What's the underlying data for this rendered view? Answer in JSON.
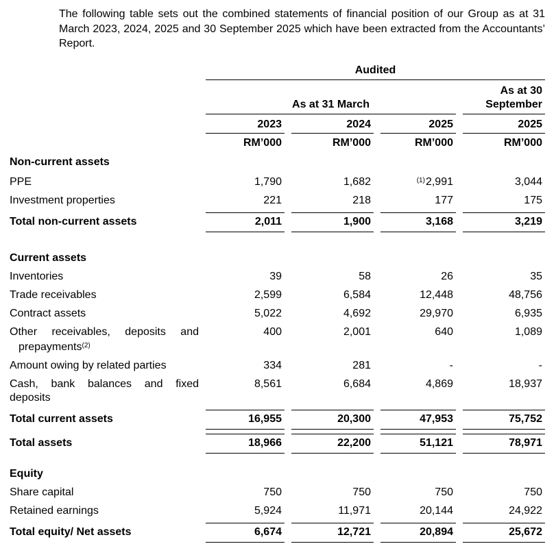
{
  "colors": {
    "text": "#000000",
    "background": "#ffffff",
    "rule": "#000000"
  },
  "intro": "The following table sets out the combined statements of financial position of our Group as at 31 March 2023, 2024, 2025 and 30 September 2025 which have been extracted from the Accountants’ Report.",
  "header": {
    "audited": "Audited",
    "march_group": "As at 31 March",
    "sep_group": "As at 30 September",
    "year_2023": "2023",
    "year_2024": "2024",
    "year_2025": "2025",
    "year_sep_2025": "2025",
    "unit": "RM’000"
  },
  "sections": {
    "non_current": {
      "title": "Non-current assets",
      "ppe": {
        "label": "PPE",
        "v1": "1,790",
        "v2": "1,682",
        "v3_note": "(1)",
        "v3": "2,991",
        "v4": "3,044"
      },
      "investment_properties": {
        "label": "Investment properties",
        "v1": "221",
        "v2": "218",
        "v3": "177",
        "v4": "175"
      },
      "total": {
        "label": "Total non-current assets",
        "v1": "2,011",
        "v2": "1,900",
        "v3": "3,168",
        "v4": "3,219"
      }
    },
    "current": {
      "title": "Current assets",
      "inventories": {
        "label": "Inventories",
        "v1": "39",
        "v2": "58",
        "v3": "26",
        "v4": "35"
      },
      "trade_receivables": {
        "label": "Trade receivables",
        "v1": "2,599",
        "v2": "6,584",
        "v3": "12,448",
        "v4": "48,756"
      },
      "contract_assets": {
        "label": "Contract assets",
        "v1": "5,022",
        "v2": "4,692",
        "v3": "29,970",
        "v4": "6,935"
      },
      "other_receivables": {
        "label_line1": "Other receivables, deposits and",
        "label_line2": "prepayments",
        "label_note": "(2)",
        "v1": "400",
        "v2": "2,001",
        "v3": "640",
        "v4": "1,089"
      },
      "related_parties": {
        "label": "Amount owing by related parties",
        "v1": "334",
        "v2": "281",
        "v3": "-",
        "v4": "-"
      },
      "cash": {
        "label_line1": "Cash, bank balances and fixed",
        "label_line2": "deposits",
        "v1": "8,561",
        "v2": "6,684",
        "v3": "4,869",
        "v4": "18,937"
      },
      "total": {
        "label": "Total current assets",
        "v1": "16,955",
        "v2": "20,300",
        "v3": "47,953",
        "v4": "75,752"
      }
    },
    "total_assets": {
      "label": "Total assets",
      "v1": "18,966",
      "v2": "22,200",
      "v3": "51,121",
      "v4": "78,971"
    },
    "equity": {
      "title": "Equity",
      "share_capital": {
        "label": "Share capital",
        "v1": "750",
        "v2": "750",
        "v3": "750",
        "v4": "750"
      },
      "retained_earnings": {
        "label": "Retained earnings",
        "v1": "5,924",
        "v2": "11,971",
        "v3": "20,144",
        "v4": "24,922"
      },
      "total": {
        "label": "Total equity/ Net assets",
        "v1": "6,674",
        "v2": "12,721",
        "v3": "20,894",
        "v4": "25,672"
      }
    }
  }
}
